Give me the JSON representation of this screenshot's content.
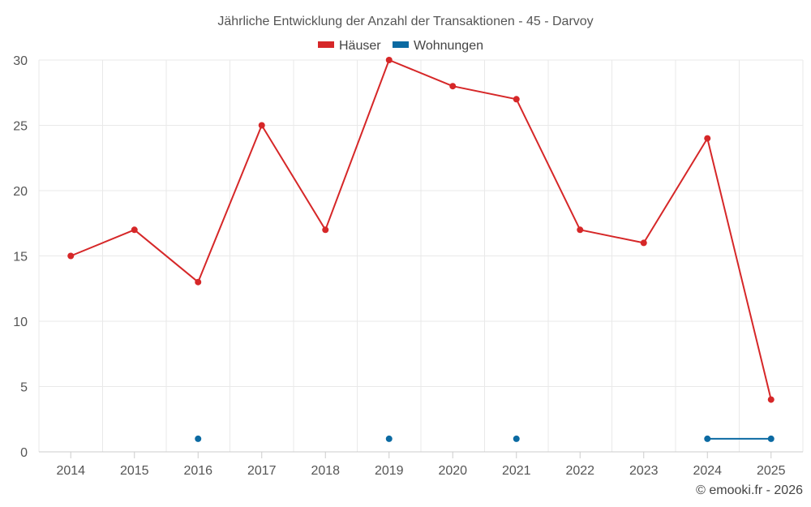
{
  "chart_data": {
    "type": "line",
    "title": "Jährliche Entwicklung der Anzahl der Transaktionen - 45 - Darvoy",
    "categories": [
      "2014",
      "2015",
      "2016",
      "2017",
      "2018",
      "2019",
      "2020",
      "2021",
      "2022",
      "2023",
      "2024",
      "2025"
    ],
    "series": [
      {
        "name": "Häuser",
        "color": "#d62728",
        "values": [
          15,
          17,
          13,
          25,
          17,
          30,
          28,
          27,
          17,
          16,
          24,
          4
        ]
      },
      {
        "name": "Wohnungen",
        "color": "#0b6aa2",
        "values": [
          null,
          null,
          1,
          null,
          null,
          1,
          null,
          1,
          null,
          null,
          1,
          1
        ]
      }
    ],
    "yticks": [
      0,
      5,
      10,
      15,
      20,
      25,
      30
    ],
    "ylim": [
      0,
      30
    ],
    "xlabel": "",
    "ylabel": "",
    "grid": true,
    "legend": "top-center"
  },
  "credit": "© emooki.fr - 2026"
}
